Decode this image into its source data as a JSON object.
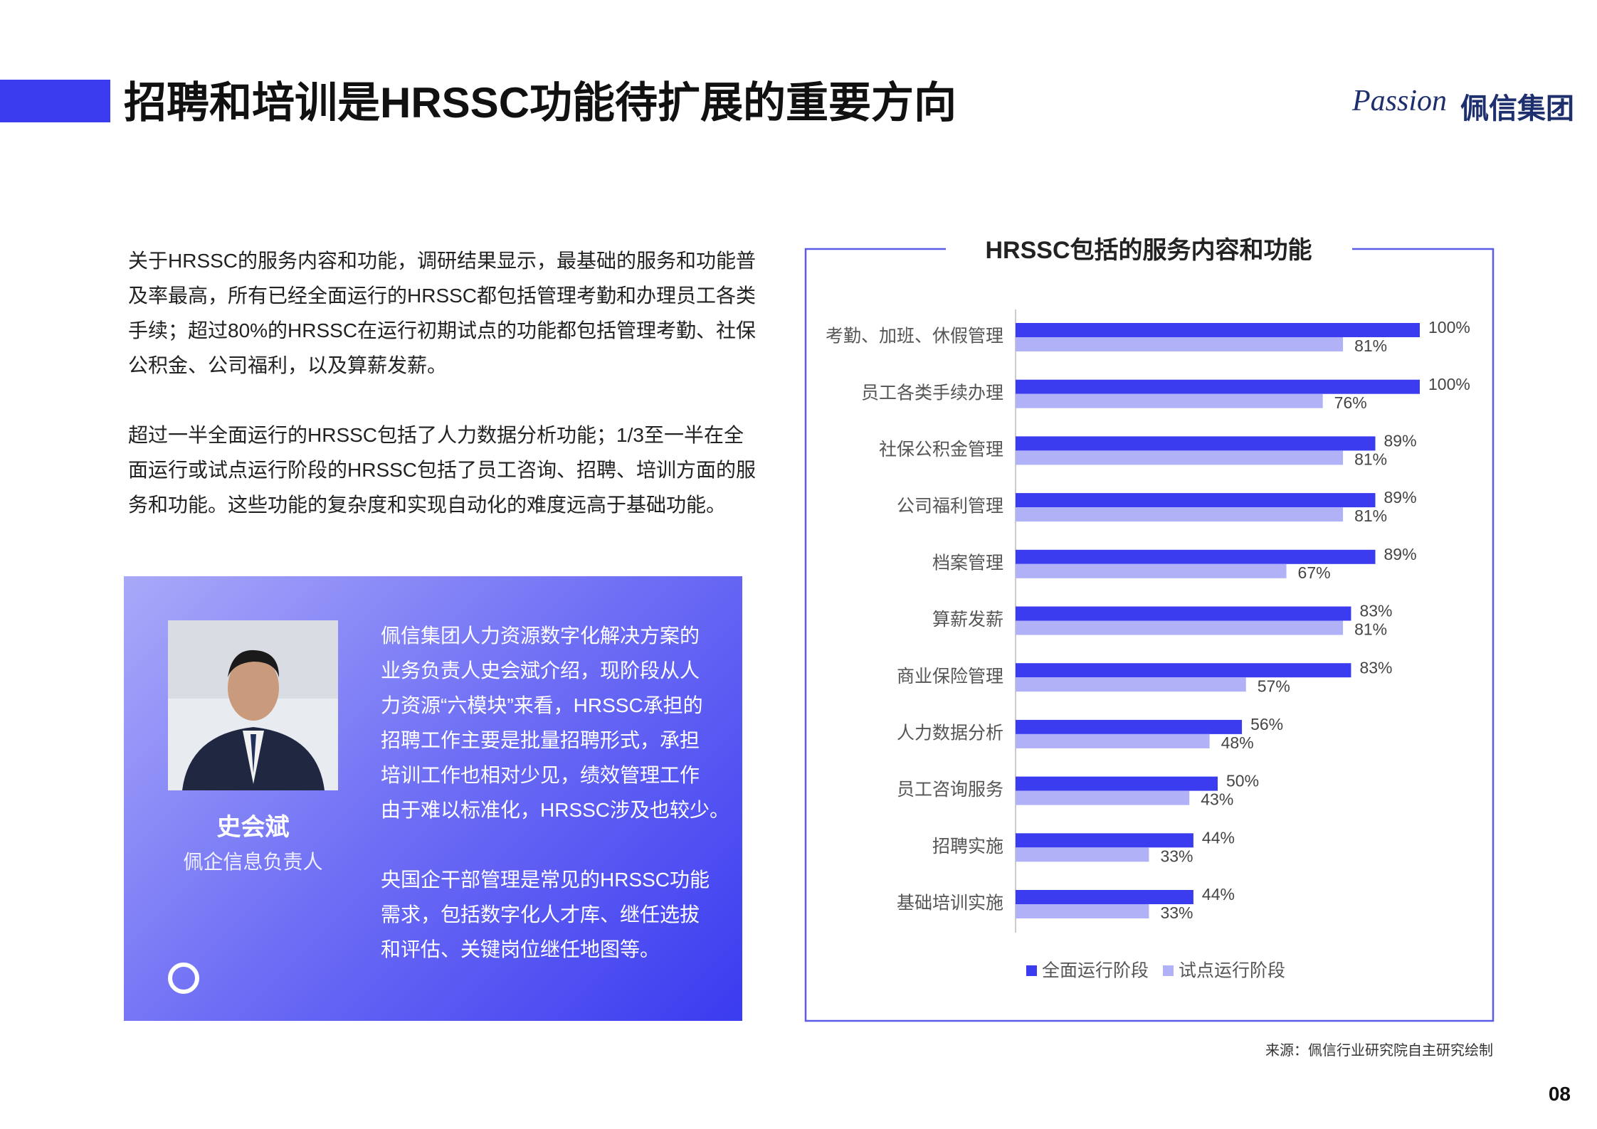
{
  "header": {
    "title": "招聘和培训是HRSSC功能待扩展的重要方向",
    "logo_en": "Passion",
    "logo_cn": "佩信集团"
  },
  "text": {
    "paragraphs": [
      {
        "lines": [
          "关于HRSSC的服务内容和功能，调研结果显示，最基础的服务和功能普",
          "及率最高，所有已经全面运行的HRSSC都包括管理考勤和办理员工各类",
          "手续；超过80%的HRSSC在运行初期试点的功能都包括管理考勤、社保",
          "公积金、公司福利，以及算薪发薪。"
        ]
      },
      {
        "lines": [
          "超过一半全面运行的HRSSC包括了人力数据分析功能；1/3至一半在全",
          "面运行或试点运行阶段的HRSSC包括了员工咨询、招聘、培训方面的服",
          "务和功能。这些功能的复杂度和实现自动化的难度远高于基础功能。"
        ]
      }
    ]
  },
  "quote": {
    "name": "史会斌",
    "role": "佩企信息负责人",
    "paragraphs": [
      {
        "lines": [
          "佩信集团人力资源数字化解决方案的",
          "业务负责人史会斌介绍，现阶段从人",
          "力资源“六模块”来看，HRSSC承担的",
          "招聘工作主要是批量招聘形式，承担",
          "培训工作也相对少见，绩效管理工作",
          "由于难以标准化，HRSSC涉及也较少。"
        ]
      },
      {
        "lines": [
          "央国企干部管理是常见的HRSSC功能",
          "需求，包括数字化人才库、继任选拔",
          "和评估、关键岗位继任地图等。"
        ]
      }
    ]
  },
  "chart_data": {
    "type": "hbar",
    "title": "HRSSC包括的服务内容和功能",
    "categories": [
      "考勤、加班、休假管理",
      "员工各类手续办理",
      "社保公积金管理",
      "公司福利管理",
      "档案管理",
      "算薪发薪",
      "商业保险管理",
      "人力数据分析",
      "员工咨询服务",
      "招聘实施",
      "基础培训实施"
    ],
    "series": [
      {
        "name": "全面运行阶段",
        "color": "#3b3bf0",
        "values": [
          100,
          100,
          89,
          89,
          89,
          83,
          83,
          56,
          50,
          44,
          44
        ],
        "value_labels": [
          "100%",
          "100%",
          "89%",
          "89%",
          "89%",
          "83%",
          "83%",
          "56%",
          "50%",
          "44%",
          "44%"
        ]
      },
      {
        "name": "试点运行阶段",
        "color": "#b1b1f7",
        "values": [
          81,
          76,
          81,
          81,
          67,
          81,
          57,
          48,
          43,
          33,
          33
        ],
        "value_labels": [
          "81%",
          "76%",
          "81%",
          "81%",
          "67%",
          "81%",
          "57%",
          "48%",
          "43%",
          "33%",
          "33%"
        ]
      }
    ],
    "xlim": [
      0,
      100
    ],
    "legend": "bottom"
  },
  "source": "来源：佩信行业研究院自主研究绘制",
  "page_number": "08"
}
